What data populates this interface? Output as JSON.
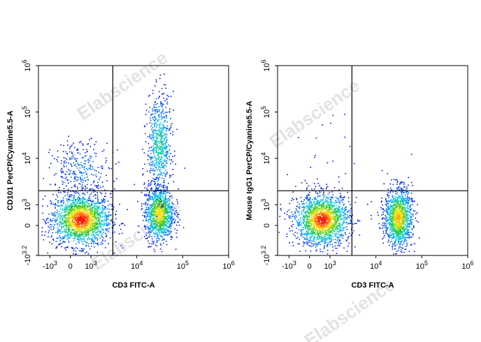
{
  "watermark": "Elabscience",
  "chart_data": [
    {
      "type": "scatter",
      "xlabel": "CD3 FITC-A",
      "ylabel": "CD101 PerCP/Cyanine5.5-A",
      "x_scale": "biexponential",
      "y_scale": "biexponential",
      "x_tick_labels": [
        {
          "value": -1000,
          "label": "-10^3"
        },
        {
          "value": 0,
          "label": "0"
        },
        {
          "value": 1000,
          "label": "10^3"
        },
        {
          "value": 10000,
          "label": "10^4"
        },
        {
          "value": 100000,
          "label": "10^5"
        },
        {
          "value": 1000000,
          "label": "10^6"
        }
      ],
      "y_tick_labels": [
        {
          "value": -1585,
          "label": "-10^3.2"
        },
        {
          "value": 0,
          "label": "0"
        },
        {
          "value": 1000,
          "label": "10^3"
        },
        {
          "value": 10000,
          "label": "10^4"
        },
        {
          "value": 100000,
          "label": "10^5"
        },
        {
          "value": 1000000,
          "label": "10^6"
        }
      ],
      "quadrant_gate": {
        "x": 3000,
        "y": 2000
      },
      "populations": [
        {
          "x_center": 500,
          "y_center": 300,
          "relative_density": 1.0
        },
        {
          "x_center": 30000,
          "y_center": 600,
          "relative_density": 0.8
        },
        {
          "x_center": 30000,
          "y_center": 20000,
          "relative_density": 0.45
        },
        {
          "x_center": 500,
          "y_center": 6000,
          "relative_density": 0.18
        }
      ]
    },
    {
      "type": "scatter",
      "xlabel": "CD3 FITC-A",
      "ylabel": "Mouse IgG1 PerCP/Cyanine5.5-A",
      "x_scale": "biexponential",
      "y_scale": "biexponential",
      "x_tick_labels": [
        {
          "value": -1000,
          "label": "-10^3"
        },
        {
          "value": 0,
          "label": "0"
        },
        {
          "value": 1000,
          "label": "10^3"
        },
        {
          "value": 10000,
          "label": "10^4"
        },
        {
          "value": 100000,
          "label": "10^5"
        },
        {
          "value": 1000000,
          "label": "10^6"
        }
      ],
      "y_tick_labels": [
        {
          "value": -1585,
          "label": "-10^3.2"
        },
        {
          "value": 0,
          "label": "0"
        },
        {
          "value": 1000,
          "label": "10^3"
        },
        {
          "value": 10000,
          "label": "10^4"
        },
        {
          "value": 100000,
          "label": "10^5"
        },
        {
          "value": 1000000,
          "label": "10^6"
        }
      ],
      "quadrant_gate": {
        "x": 3000,
        "y": 2000
      },
      "populations": [
        {
          "x_center": 600,
          "y_center": 300,
          "relative_density": 1.0
        },
        {
          "x_center": 30000,
          "y_center": 400,
          "relative_density": 0.85
        },
        {
          "x_center": 500,
          "y_center": 5000,
          "relative_density": 0.02
        }
      ]
    }
  ]
}
